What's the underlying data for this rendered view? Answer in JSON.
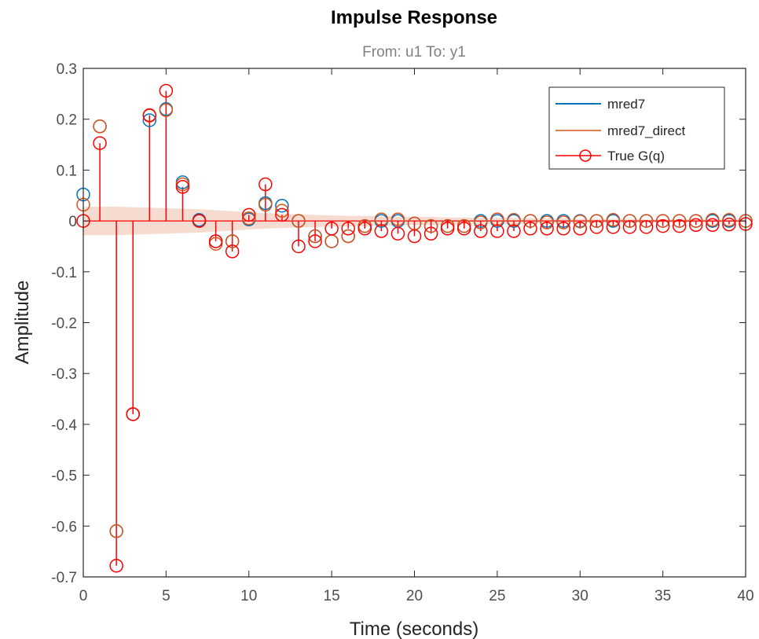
{
  "chart_data": {
    "type": "stem",
    "title": "Impulse Response",
    "subtitle": "From: u1  To: y1",
    "xlabel": "Time (seconds)",
    "ylabel": "Amplitude",
    "xlim": [
      0,
      40
    ],
    "ylim": [
      -0.7,
      0.3
    ],
    "x_ticks": [
      0,
      5,
      10,
      15,
      20,
      25,
      30,
      35,
      40
    ],
    "y_ticks": [
      0.3,
      0.2,
      0.1,
      0,
      -0.1,
      -0.2,
      -0.3,
      -0.4,
      -0.5,
      -0.6,
      -0.7
    ],
    "x_tick_labels": [
      "0",
      "5",
      "10",
      "15",
      "20",
      "25",
      "30",
      "35",
      "40"
    ],
    "y_tick_labels": [
      "0.3",
      "0.2",
      "0.1",
      "0",
      "-0.1",
      "-0.2",
      "-0.3",
      "-0.4",
      "-0.5",
      "-0.6",
      "-0.7"
    ],
    "grid": false,
    "legend_position": "top-right",
    "x": [
      0,
      1,
      2,
      3,
      4,
      5,
      6,
      7,
      8,
      9,
      10,
      11,
      12,
      13,
      14,
      15,
      16,
      17,
      18,
      19,
      20,
      21,
      22,
      23,
      24,
      25,
      26,
      27,
      28,
      29,
      30,
      31,
      32,
      33,
      34,
      35,
      36,
      37,
      38,
      39,
      40
    ],
    "series": [
      {
        "name": "mred7",
        "color": "#0072BD",
        "marker": "circle",
        "values": [
          0.052,
          0.186,
          -0.61,
          -0.38,
          0.198,
          0.22,
          0.076,
          0.002,
          -0.04,
          -0.04,
          0.003,
          0.035,
          0.03,
          0.0,
          -0.03,
          -0.04,
          -0.03,
          -0.01,
          0.0,
          0.0,
          -0.005,
          -0.01,
          -0.01,
          -0.01,
          0.0,
          0.0,
          0.0,
          0.0,
          0.0,
          0.0,
          0.0,
          0.0,
          0.0,
          0.0,
          0.0,
          0.0,
          0.0,
          0.0,
          0.0,
          0.0,
          0.0
        ]
      },
      {
        "name": "mred7_direct",
        "color": "#D95319",
        "marker": "circle",
        "values": [
          0.032,
          0.186,
          -0.61,
          -0.38,
          0.207,
          0.218,
          0.072,
          0.0,
          -0.045,
          -0.04,
          0.005,
          0.032,
          0.02,
          0.0,
          -0.03,
          -0.04,
          -0.03,
          -0.01,
          0.003,
          0.003,
          -0.005,
          -0.01,
          -0.01,
          -0.01,
          -0.003,
          0.003,
          0.002,
          0.0,
          -0.003,
          -0.003,
          -0.001,
          0.0,
          0.002,
          0.0,
          0.0,
          0.0,
          0.0,
          0.0,
          0.002,
          0.002,
          0.0
        ]
      },
      {
        "name": "True G(q)",
        "color": "#FF0000",
        "marker": "circle",
        "values": [
          0.0,
          0.153,
          -0.678,
          -0.38,
          0.208,
          0.256,
          0.067,
          0.0,
          -0.04,
          -0.06,
          0.012,
          0.072,
          0.012,
          -0.05,
          -0.04,
          -0.015,
          -0.015,
          -0.015,
          -0.02,
          -0.025,
          -0.03,
          -0.025,
          -0.015,
          -0.015,
          -0.02,
          -0.02,
          -0.02,
          -0.015,
          -0.015,
          -0.015,
          -0.015,
          -0.012,
          -0.012,
          -0.012,
          -0.012,
          -0.01,
          -0.01,
          -0.008,
          -0.008,
          -0.007,
          -0.006
        ]
      }
    ],
    "confidence_region": {
      "color": "#F5D5C8",
      "half_width": [
        0.028,
        0.028,
        0.028,
        0.027,
        0.026,
        0.025,
        0.024,
        0.023,
        0.021,
        0.019,
        0.017,
        0.015,
        0.014,
        0.013,
        0.012,
        0.011,
        0.01,
        0.01,
        0.009,
        0.009,
        0.008,
        0.008,
        0.007,
        0.007,
        0.006,
        0.006,
        0.006,
        0.005,
        0.005,
        0.005,
        0.004,
        0.004,
        0.004,
        0.004,
        0.003,
        0.003,
        0.003,
        0.003,
        0.003,
        0.003,
        0.003
      ]
    }
  }
}
